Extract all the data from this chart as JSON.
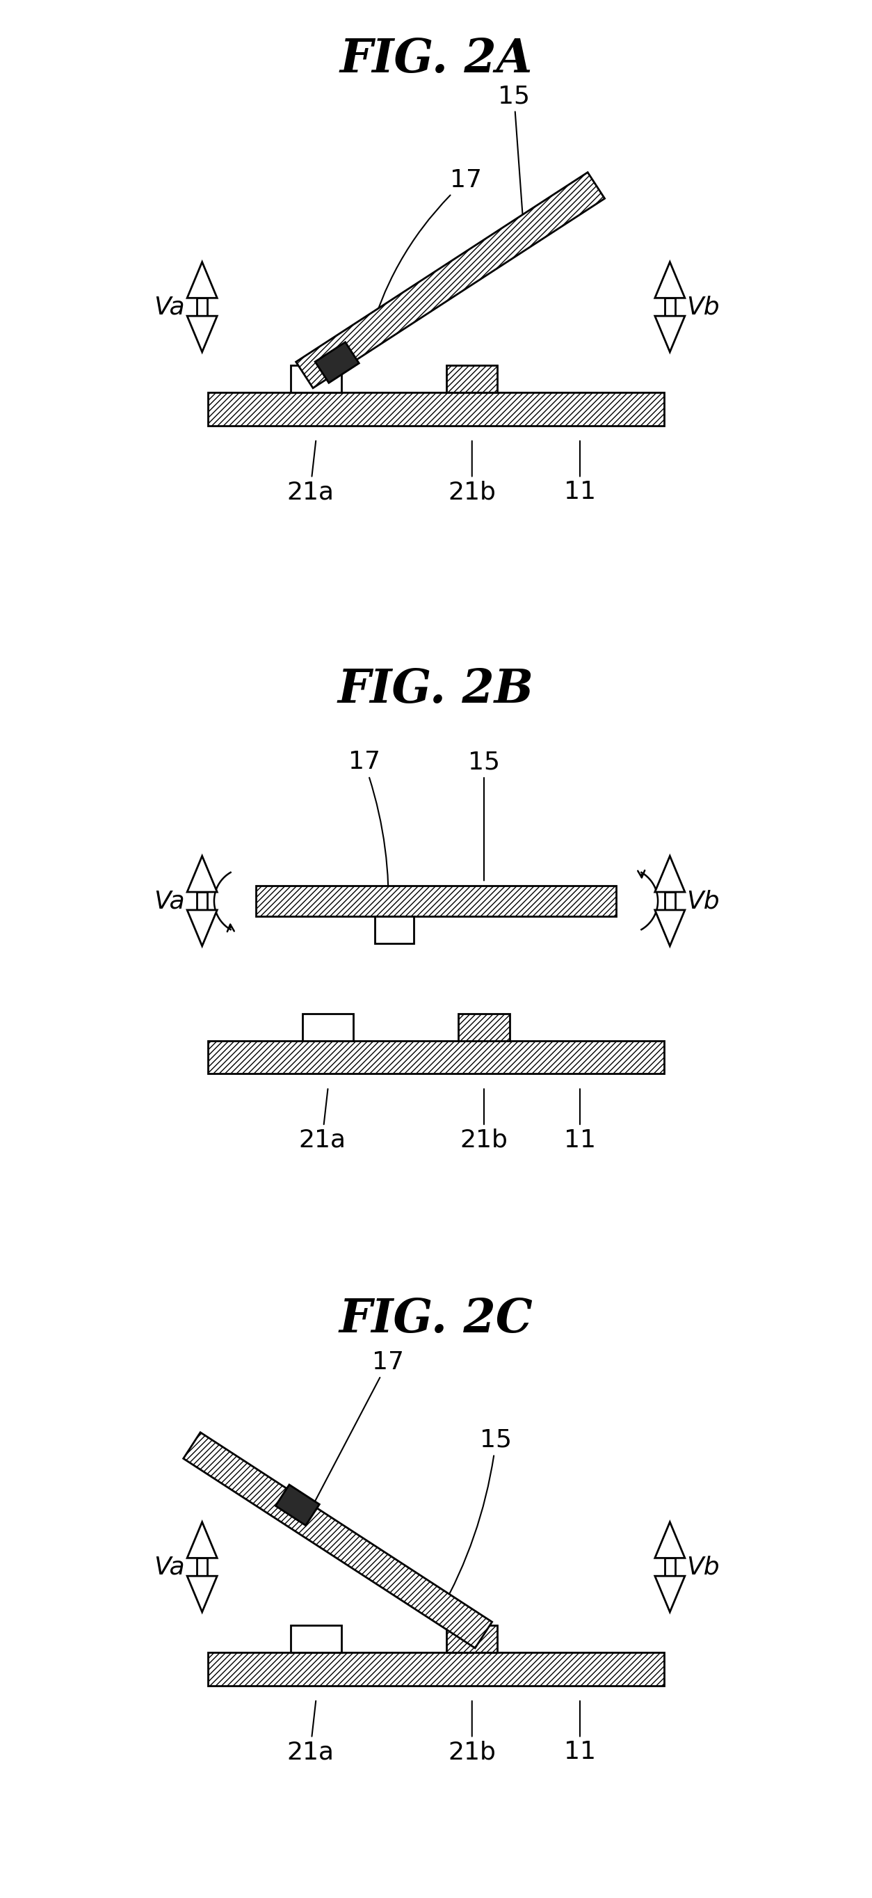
{
  "bg_color": "#ffffff",
  "line_color": "#000000",
  "title_fontsize": 48,
  "label_fontsize": 28,
  "fig_width": 12.54,
  "fig_height": 27.28,
  "lw": 2.0,
  "hatch": "////",
  "panel_titles": [
    "FIG. 2A",
    "FIG. 2B",
    "FIG. 2C"
  ]
}
